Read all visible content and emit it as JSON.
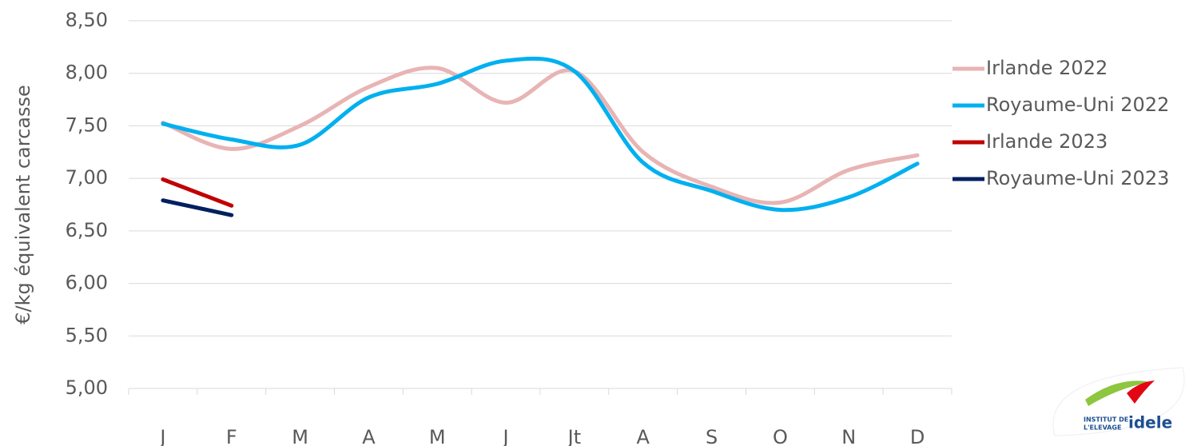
{
  "chart_data": {
    "type": "line",
    "y_label": "€/kg équivalent carcasse",
    "categories": [
      "J",
      "F",
      "M",
      "A",
      "M",
      "J",
      "Jt",
      "A",
      "S",
      "O",
      "N",
      "D"
    ],
    "series": [
      {
        "name": "Irlande 2022",
        "color": "#e8b4b4",
        "values": [
          7.53,
          7.28,
          7.5,
          7.87,
          8.05,
          7.72,
          8.02,
          7.25,
          6.92,
          6.77,
          7.08,
          7.22
        ]
      },
      {
        "name": "Royaume-Uni 2022",
        "color": "#00b0f0",
        "values": [
          7.52,
          7.37,
          7.32,
          7.77,
          7.9,
          8.12,
          8.02,
          7.15,
          6.88,
          6.7,
          6.82,
          7.14
        ]
      },
      {
        "name": "Irlande 2023",
        "color": "#c00000",
        "values": [
          6.99,
          6.74,
          null,
          null,
          null,
          null,
          null,
          null,
          null,
          null,
          null,
          null
        ]
      },
      {
        "name": "Royaume-Uni 2023",
        "color": "#002060",
        "values": [
          6.79,
          6.65,
          null,
          null,
          null,
          null,
          null,
          null,
          null,
          null,
          null,
          null
        ]
      }
    ],
    "ylim": [
      5,
      8.5
    ],
    "yticks": [
      {
        "value": 5,
        "label": "5,00"
      },
      {
        "value": 5.5,
        "label": "5,50"
      },
      {
        "value": 6,
        "label": "6,00"
      },
      {
        "value": 6.5,
        "label": "6,50"
      },
      {
        "value": 7,
        "label": "7,00"
      },
      {
        "value": 7.5,
        "label": "7,50"
      },
      {
        "value": 8,
        "label": "8,00"
      },
      {
        "value": 8.5,
        "label": "8,50"
      }
    ],
    "grid": true,
    "smooth": true,
    "legend": "right"
  },
  "logo": {
    "line1": "INSTITUT DE",
    "line2": "L'ELEVAGE",
    "brand": "idele"
  }
}
